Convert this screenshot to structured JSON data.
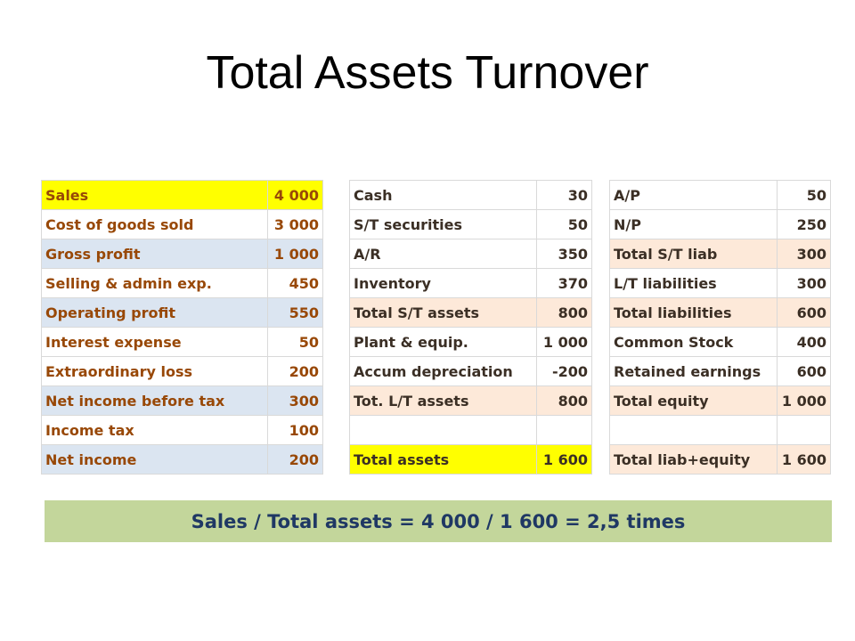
{
  "slide": {
    "title": "Total Assets Turnover"
  },
  "income_statement": [
    {
      "label": "Sales",
      "value": "4 000"
    },
    {
      "label": "Cost of goods sold",
      "value": "3 000"
    },
    {
      "label": "Gross profit",
      "value": "1 000"
    },
    {
      "label": "Selling & admin exp.",
      "value": "450"
    },
    {
      "label": "Operating profit",
      "value": "550"
    },
    {
      "label": "Interest expense",
      "value": "50"
    },
    {
      "label": "Extraordinary loss",
      "value": "200"
    },
    {
      "label": "Net income before tax",
      "value": "300"
    },
    {
      "label": "Income tax",
      "value": "100"
    },
    {
      "label": "Net income",
      "value": "200"
    }
  ],
  "assets": [
    {
      "label": "Cash",
      "value": "30"
    },
    {
      "label": "S/T securities",
      "value": "50"
    },
    {
      "label": "A/R",
      "value": "350"
    },
    {
      "label": "Inventory",
      "value": "370"
    },
    {
      "label": "Total S/T assets",
      "value": "800"
    },
    {
      "label": "Plant & equip.",
      "value": "1 000"
    },
    {
      "label": "Accum depreciation",
      "value": "-200"
    },
    {
      "label": "Tot. L/T assets",
      "value": "800"
    },
    {
      "label": "",
      "value": ""
    },
    {
      "label": "Total assets",
      "value": "1 600"
    }
  ],
  "liabilities_equity": [
    {
      "label": "A/P",
      "value": "50"
    },
    {
      "label": "N/P",
      "value": "250"
    },
    {
      "label": "Total S/T liab",
      "value": "300"
    },
    {
      "label": "L/T liabilities",
      "value": "300"
    },
    {
      "label": "Total liabilities",
      "value": "600"
    },
    {
      "label": "Common Stock",
      "value": "400"
    },
    {
      "label": "Retained earnings",
      "value": "600"
    },
    {
      "label": "Total equity",
      "value": "1 000"
    },
    {
      "label": "",
      "value": ""
    },
    {
      "label": "Total liab+equity",
      "value": "1 600"
    }
  ],
  "formula": {
    "text": "Sales / Total assets = 4 000 / 1 600 = 2,5 times"
  },
  "colors": {
    "income_text": "#984807",
    "balance_text": "#3b2f25",
    "highlight_yellow": "#ffff00",
    "subtotal_blue": "#dbe5f1",
    "subtotal_peach": "#fde9d9",
    "formula_bg": "#c3d69b",
    "formula_text": "#1f3864"
  }
}
